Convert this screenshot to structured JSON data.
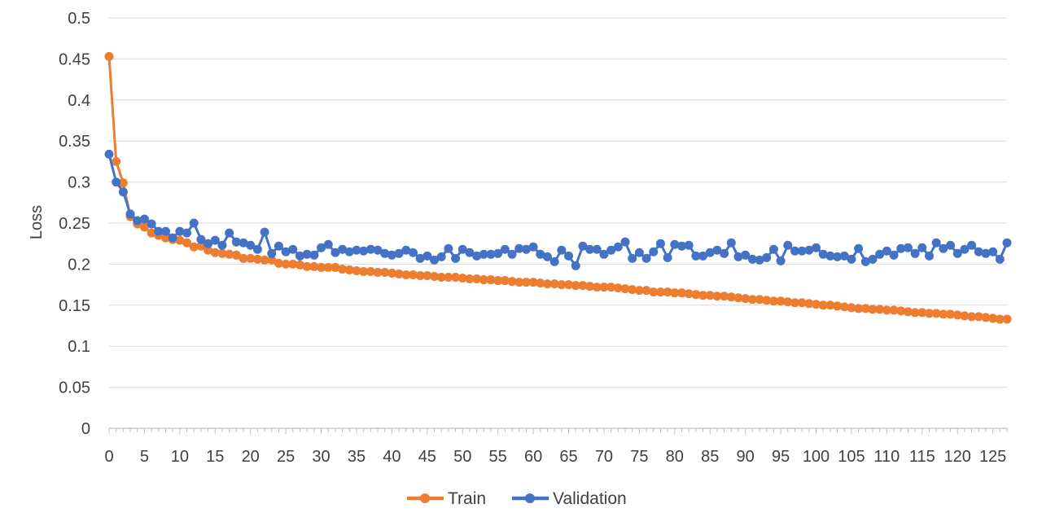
{
  "chart_data": {
    "type": "line",
    "title": "",
    "xlabel": "",
    "ylabel": "Loss",
    "xlim": [
      0,
      127
    ],
    "ylim": [
      0,
      0.5
    ],
    "y_ticks": [
      "0",
      "0.05",
      "0.1",
      "0.15",
      "0.2",
      "0.25",
      "0.3",
      "0.35",
      "0.4",
      "0.45",
      "0.5"
    ],
    "x_ticks": [
      "0",
      "5",
      "10",
      "15",
      "20",
      "25",
      "30",
      "35",
      "40",
      "45",
      "50",
      "55",
      "60",
      "65",
      "70",
      "75",
      "80",
      "85",
      "90",
      "95",
      "100",
      "105",
      "110",
      "115",
      "120",
      "125"
    ],
    "grid": "horizontal",
    "legend_position": "bottom",
    "x": [
      0,
      1,
      2,
      3,
      4,
      5,
      6,
      7,
      8,
      9,
      10,
      11,
      12,
      13,
      14,
      15,
      16,
      17,
      18,
      19,
      20,
      21,
      22,
      23,
      24,
      25,
      26,
      27,
      28,
      29,
      30,
      31,
      32,
      33,
      34,
      35,
      36,
      37,
      38,
      39,
      40,
      41,
      42,
      43,
      44,
      45,
      46,
      47,
      48,
      49,
      50,
      51,
      52,
      53,
      54,
      55,
      56,
      57,
      58,
      59,
      60,
      61,
      62,
      63,
      64,
      65,
      66,
      67,
      68,
      69,
      70,
      71,
      72,
      73,
      74,
      75,
      76,
      77,
      78,
      79,
      80,
      81,
      82,
      83,
      84,
      85,
      86,
      87,
      88,
      89,
      90,
      91,
      92,
      93,
      94,
      95,
      96,
      97,
      98,
      99,
      100,
      101,
      102,
      103,
      104,
      105,
      106,
      107,
      108,
      109,
      110,
      111,
      112,
      113,
      114,
      115,
      116,
      117,
      118,
      119,
      120,
      121,
      122,
      123,
      124,
      125,
      126,
      127
    ],
    "series": [
      {
        "name": "Train",
        "color": "#ED7D31",
        "values": [
          0.453,
          0.325,
          0.299,
          0.258,
          0.249,
          0.245,
          0.238,
          0.235,
          0.232,
          0.23,
          0.229,
          0.226,
          0.221,
          0.222,
          0.217,
          0.214,
          0.213,
          0.212,
          0.211,
          0.207,
          0.207,
          0.206,
          0.205,
          0.205,
          0.201,
          0.2,
          0.2,
          0.199,
          0.197,
          0.197,
          0.196,
          0.196,
          0.196,
          0.194,
          0.193,
          0.192,
          0.191,
          0.191,
          0.19,
          0.19,
          0.189,
          0.188,
          0.187,
          0.187,
          0.186,
          0.186,
          0.185,
          0.184,
          0.184,
          0.184,
          0.183,
          0.182,
          0.182,
          0.181,
          0.181,
          0.18,
          0.18,
          0.179,
          0.178,
          0.178,
          0.178,
          0.177,
          0.176,
          0.176,
          0.175,
          0.175,
          0.174,
          0.174,
          0.173,
          0.172,
          0.172,
          0.172,
          0.171,
          0.17,
          0.169,
          0.168,
          0.168,
          0.166,
          0.166,
          0.166,
          0.165,
          0.165,
          0.164,
          0.163,
          0.162,
          0.162,
          0.161,
          0.161,
          0.16,
          0.159,
          0.158,
          0.157,
          0.157,
          0.156,
          0.155,
          0.155,
          0.154,
          0.153,
          0.153,
          0.152,
          0.151,
          0.15,
          0.15,
          0.149,
          0.148,
          0.147,
          0.146,
          0.146,
          0.145,
          0.145,
          0.144,
          0.144,
          0.143,
          0.142,
          0.141,
          0.141,
          0.14,
          0.14,
          0.139,
          0.139,
          0.138,
          0.137,
          0.136,
          0.136,
          0.135,
          0.134,
          0.133,
          0.133
        ]
      },
      {
        "name": "Validation",
        "color": "#4472C4",
        "values": [
          0.334,
          0.3,
          0.288,
          0.261,
          0.253,
          0.255,
          0.249,
          0.24,
          0.24,
          0.232,
          0.24,
          0.238,
          0.25,
          0.23,
          0.225,
          0.229,
          0.223,
          0.238,
          0.227,
          0.226,
          0.223,
          0.218,
          0.239,
          0.213,
          0.222,
          0.215,
          0.218,
          0.21,
          0.212,
          0.211,
          0.22,
          0.224,
          0.214,
          0.218,
          0.215,
          0.217,
          0.216,
          0.218,
          0.217,
          0.213,
          0.211,
          0.213,
          0.217,
          0.214,
          0.207,
          0.21,
          0.205,
          0.209,
          0.219,
          0.207,
          0.218,
          0.214,
          0.21,
          0.212,
          0.212,
          0.213,
          0.218,
          0.212,
          0.219,
          0.218,
          0.221,
          0.212,
          0.209,
          0.203,
          0.217,
          0.21,
          0.198,
          0.222,
          0.218,
          0.218,
          0.212,
          0.217,
          0.221,
          0.227,
          0.207,
          0.214,
          0.207,
          0.215,
          0.225,
          0.208,
          0.224,
          0.222,
          0.223,
          0.21,
          0.21,
          0.214,
          0.217,
          0.213,
          0.226,
          0.209,
          0.211,
          0.206,
          0.205,
          0.208,
          0.218,
          0.204,
          0.223,
          0.216,
          0.216,
          0.217,
          0.22,
          0.212,
          0.21,
          0.209,
          0.21,
          0.206,
          0.219,
          0.203,
          0.206,
          0.212,
          0.216,
          0.211,
          0.219,
          0.22,
          0.213,
          0.22,
          0.21,
          0.226,
          0.219,
          0.223,
          0.213,
          0.218,
          0.223,
          0.215,
          0.213,
          0.215,
          0.206,
          0.226
        ]
      }
    ]
  }
}
